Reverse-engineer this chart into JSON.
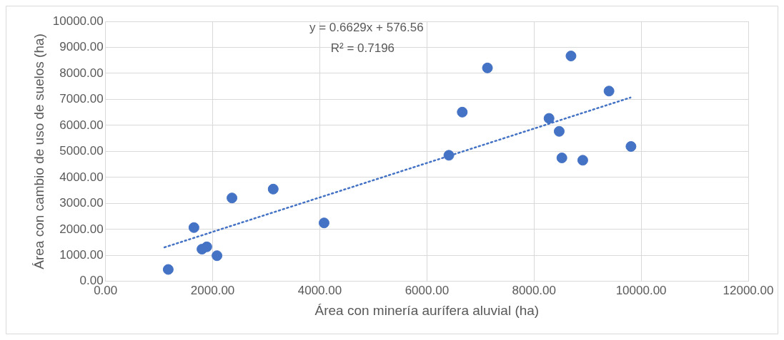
{
  "chart_data": {
    "type": "scatter",
    "xlabel": "Área con minería aurífera aluvial (ha)",
    "ylabel": "Área con cambio de uso de suelos (ha)",
    "xlim": [
      0,
      12000
    ],
    "ylim": [
      0,
      10000
    ],
    "xticks": [
      {
        "value": 0,
        "label": "0.00"
      },
      {
        "value": 2000,
        "label": "2000.00"
      },
      {
        "value": 4000,
        "label": "4000.00"
      },
      {
        "value": 6000,
        "label": "6000.00"
      },
      {
        "value": 8000,
        "label": "8000.00"
      },
      {
        "value": 10000,
        "label": "10000.00"
      },
      {
        "value": 12000,
        "label": "12000.00"
      }
    ],
    "yticks": [
      {
        "value": 0,
        "label": "0.00"
      },
      {
        "value": 1000,
        "label": "1000.00"
      },
      {
        "value": 2000,
        "label": "2000.00"
      },
      {
        "value": 3000,
        "label": "3000.00"
      },
      {
        "value": 4000,
        "label": "4000.00"
      },
      {
        "value": 5000,
        "label": "5000.00"
      },
      {
        "value": 6000,
        "label": "6000.00"
      },
      {
        "value": 7000,
        "label": "7000.00"
      },
      {
        "value": 8000,
        "label": "8000.00"
      },
      {
        "value": 9000,
        "label": "9000.00"
      },
      {
        "value": 10000,
        "label": "10000.00"
      }
    ],
    "grid": true,
    "legend": false,
    "marker": "circle",
    "annotations": [
      "y = 0.6629x + 576.56",
      "R² = 0.7196"
    ],
    "series": [
      {
        "color": "#4472c4",
        "x": [
          1170,
          1650,
          1800,
          1890,
          2080,
          2360,
          3130,
          4080,
          6410,
          6660,
          7130,
          8280,
          8470,
          8520,
          8690,
          8910,
          9400,
          9810
        ],
        "values": [
          460,
          2070,
          1240,
          1330,
          990,
          3210,
          3550,
          2250,
          4850,
          6510,
          8210,
          6270,
          5770,
          4750,
          8670,
          4660,
          7320,
          5190
        ]
      },
      {
        "type": "line",
        "color": "#4472c4",
        "line_style": "dotted",
        "marker": "none",
        "x": [
          1100,
          9800
        ],
        "values": [
          1310,
          7070
        ]
      }
    ]
  }
}
